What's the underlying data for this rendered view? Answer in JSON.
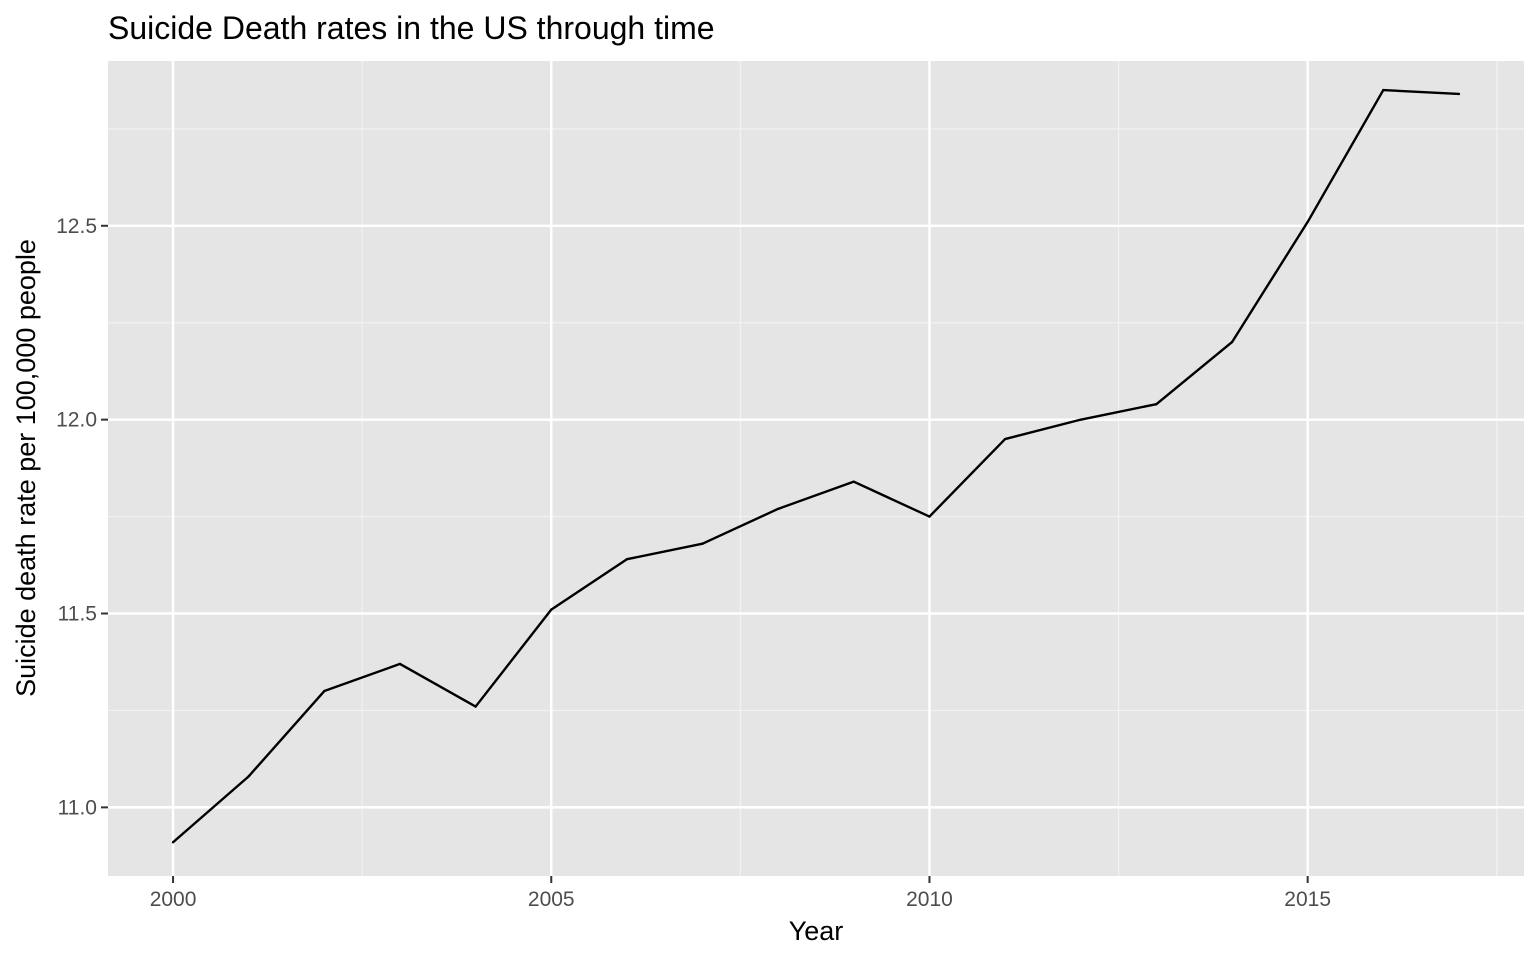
{
  "chart_data": {
    "type": "line",
    "title": "Suicide Death rates in the US through time",
    "xlabel": "Year",
    "ylabel": "Suicide death rate per 100,000 people",
    "xlim": [
      1999.14,
      2017.86
    ],
    "ylim": [
      10.823,
      12.925
    ],
    "x_ticks": [
      2000,
      2005,
      2010,
      2015
    ],
    "x_tick_labels": [
      "2000",
      "2005",
      "2010",
      "2015"
    ],
    "y_ticks": [
      11.0,
      11.5,
      12.0,
      12.5
    ],
    "y_tick_labels": [
      "11.0",
      "11.5",
      "12.0",
      "12.5"
    ],
    "grid": true,
    "colors": {
      "panel": "#e5e5e5",
      "grid_major": "#ffffff",
      "grid_minor": "#f2f2f2",
      "line": "#000000",
      "axis_text": "#4d4d4d",
      "title_text": "#000000"
    },
    "series": [
      {
        "x": [
          2000,
          2001,
          2002,
          2003,
          2004,
          2005,
          2006,
          2007,
          2008,
          2009,
          2010,
          2011,
          2012,
          2013,
          2014,
          2015,
          2016,
          2017
        ],
        "values": [
          10.91,
          11.08,
          11.3,
          11.37,
          11.26,
          11.51,
          11.64,
          11.68,
          11.77,
          11.84,
          11.75,
          11.95,
          12.0,
          12.04,
          12.2,
          12.51,
          12.85,
          12.84
        ]
      }
    ]
  }
}
